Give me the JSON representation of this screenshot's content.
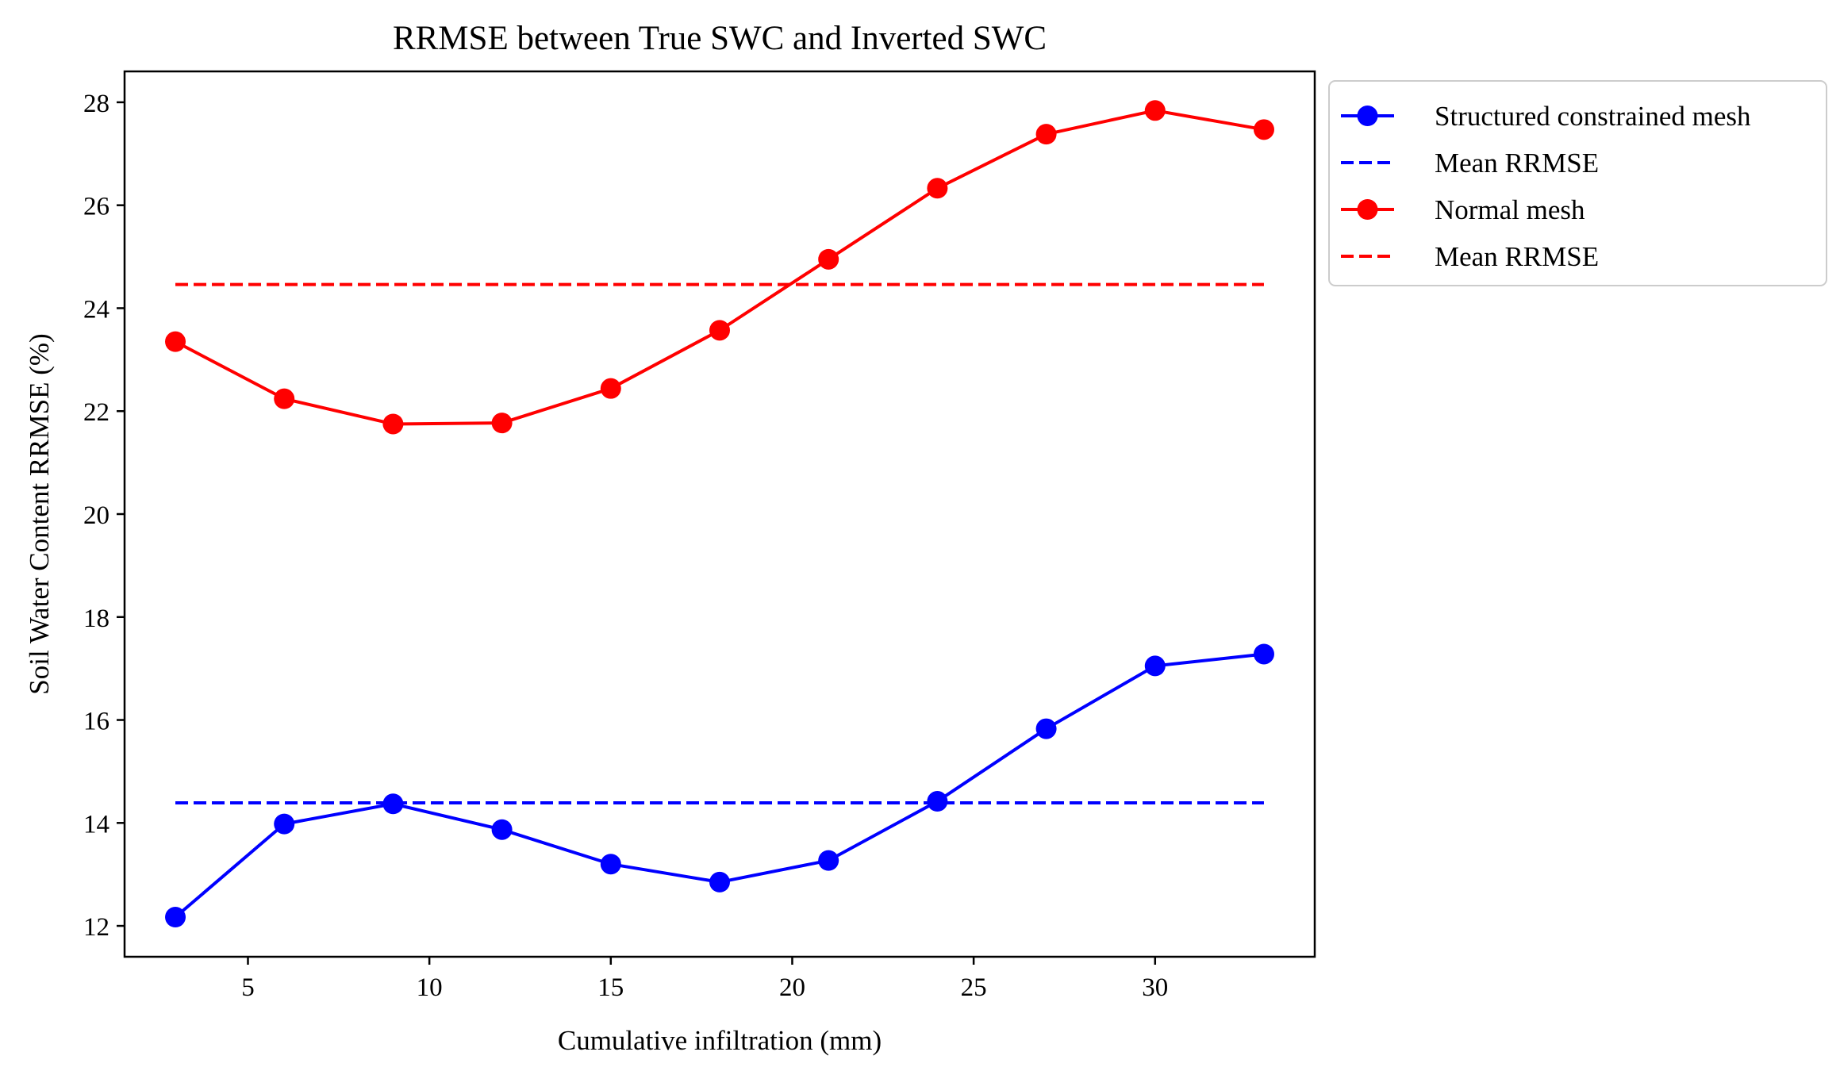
{
  "chart_data": {
    "type": "line",
    "title": "RRMSE between True SWC and Inverted SWC",
    "xlabel": "Cumulative infiltration (mm)",
    "ylabel": "Soil Water Content RRMSE (%)",
    "xlim": [
      1.6,
      34.4
    ],
    "ylim": [
      11.4,
      28.6
    ],
    "xticks": [
      5,
      10,
      15,
      20,
      25,
      30
    ],
    "yticks": [
      12,
      14,
      16,
      18,
      20,
      22,
      24,
      26,
      28
    ],
    "x": [
      3,
      6,
      9,
      12,
      15,
      18,
      21,
      24,
      27,
      30,
      33
    ],
    "series": [
      {
        "name": "Structured constrained mesh",
        "color": "#0000ff",
        "values": [
          12.17,
          13.98,
          14.37,
          13.87,
          13.2,
          12.85,
          13.27,
          14.42,
          15.83,
          17.05,
          17.28
        ]
      },
      {
        "name": "Normal mesh",
        "color": "#ff0000",
        "values": [
          23.35,
          22.24,
          21.75,
          21.77,
          22.44,
          23.57,
          24.95,
          26.33,
          27.38,
          27.84,
          27.47
        ]
      }
    ],
    "mean_lines": [
      {
        "name": "Mean RRMSE",
        "color": "#0000ff",
        "value": 14.39,
        "x_range": [
          3,
          33
        ]
      },
      {
        "name": "Mean RRMSE",
        "color": "#ff0000",
        "value": 24.46,
        "x_range": [
          3,
          33
        ]
      }
    ],
    "legend": {
      "placement": "outside-right-top",
      "entries": [
        {
          "label": "Structured constrained mesh",
          "color": "#0000ff",
          "style": "line-marker"
        },
        {
          "label": "Mean RRMSE",
          "color": "#0000ff",
          "style": "dashed"
        },
        {
          "label": "Normal mesh",
          "color": "#ff0000",
          "style": "line-marker"
        },
        {
          "label": "Mean RRMSE",
          "color": "#ff0000",
          "style": "dashed"
        }
      ]
    },
    "grid": false
  }
}
